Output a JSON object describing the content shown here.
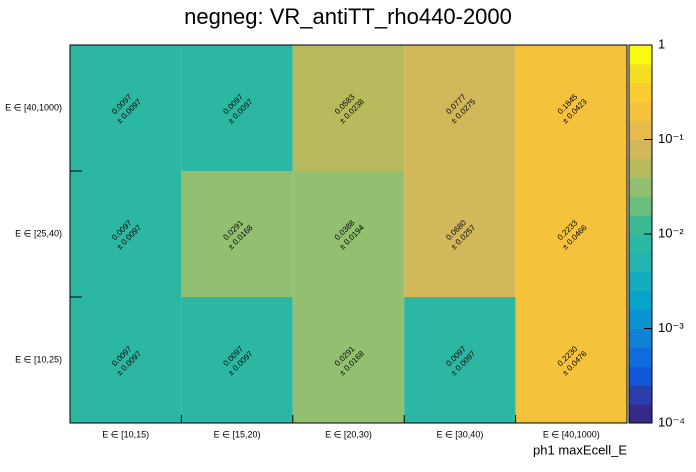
{
  "chart_data": {
    "type": "heatmap",
    "title": "negneg: VR_antiTT_rho440-2000",
    "x_label": "ph1 maxEcell_E",
    "x_categories": [
      "E ∈ [10,15)",
      "E ∈ [15,20)",
      "E ∈ [20,30)",
      "E ∈ [30,40)",
      "E ∈ [40,1000)"
    ],
    "y_categories": [
      "E ∈ [10,25)",
      "E ∈ [25,40)",
      "E ∈ [40,1000)"
    ],
    "values": [
      [
        0.0097,
        0.0097,
        0.0291,
        0.0097,
        0.223
      ],
      [
        0.0097,
        0.0291,
        0.0388,
        0.068,
        0.2233
      ],
      [
        0.0097,
        0.0097,
        0.0583,
        0.0777,
        0.1845
      ]
    ],
    "value_labels": [
      [
        "0.0097",
        "0.0097",
        "0.0291",
        "0.0097",
        "0.2230"
      ],
      [
        "0.0097",
        "0.0291",
        "0.0388",
        "0.0680",
        "0.2233"
      ],
      [
        "0.0097",
        "0.0097",
        "0.0583",
        "0.0777",
        "0.1845"
      ]
    ],
    "errors": [
      [
        0.0097,
        0.0097,
        0.0168,
        0.0097,
        0.0476
      ],
      [
        0.0097,
        0.0168,
        0.0194,
        0.0257,
        0.0466
      ],
      [
        0.0097,
        0.0097,
        0.0238,
        0.0275,
        0.0423
      ]
    ],
    "error_labels": [
      [
        "± 0.0097",
        "± 0.0097",
        "± 0.0168",
        "± 0.0097",
        "± 0.0476"
      ],
      [
        "± 0.0097",
        "± 0.0168",
        "± 0.0194",
        "± 0.0257",
        "± 0.0466"
      ],
      [
        "± 0.0097",
        "± 0.0097",
        "± 0.0238",
        "± 0.0275",
        "± 0.0423"
      ]
    ],
    "zlim": [
      0.0001,
      1
    ],
    "zlog": true,
    "zticks": [
      {
        "value": 0.0001,
        "label": "10⁻⁴"
      },
      {
        "value": 0.001,
        "label": "10⁻³"
      },
      {
        "value": 0.01,
        "label": "10⁻²"
      },
      {
        "value": 0.1,
        "label": "10⁻¹"
      },
      1
    ],
    "palette": [
      "#352a87",
      "#2b3da8",
      "#1259d9",
      "#0f6ddc",
      "#1181d4",
      "#0b93d0",
      "#07a3c9",
      "#13adbe",
      "#25b3ae",
      "#2cb7a2",
      "#3bba91",
      "#6bbf7d",
      "#93bf71",
      "#b7bb5d",
      "#d2b85a",
      "#e7bc4c",
      "#f4c23b",
      "#fbcd30",
      "#f5dd24",
      "#f9fb0e"
    ]
  }
}
